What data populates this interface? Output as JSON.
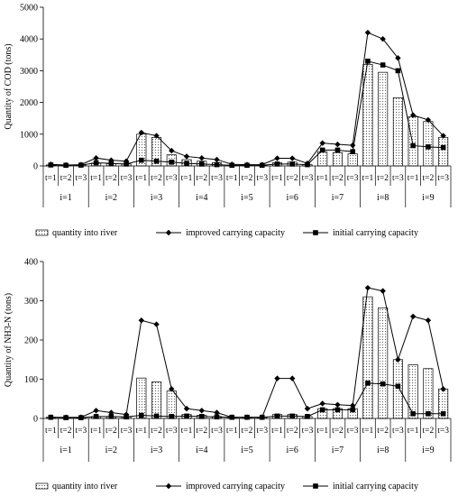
{
  "chart_data": [
    {
      "type": "bar",
      "ylabel": "Quantity of COD (tons)",
      "ylim": [
        0,
        5000
      ],
      "yticks": [
        0,
        1000,
        2000,
        3000,
        4000,
        5000
      ],
      "subcategories": [
        "t=1",
        "t=2",
        "t=3"
      ],
      "groups": [
        "i=1",
        "i=2",
        "i=3",
        "i=4",
        "i=5",
        "i=6",
        "i=7",
        "i=8",
        "i=9"
      ],
      "series": [
        {
          "name": "quantity into river",
          "kind": "bar",
          "values": [
            30,
            20,
            30,
            90,
            70,
            60,
            1000,
            900,
            350,
            200,
            150,
            100,
            20,
            20,
            20,
            100,
            120,
            40,
            450,
            420,
            380,
            3200,
            2950,
            2150,
            1550,
            1400,
            900
          ]
        },
        {
          "name": "improved carrying capacity",
          "kind": "line",
          "marker": "diamond",
          "values": [
            50,
            30,
            40,
            250,
            180,
            150,
            1050,
            950,
            480,
            300,
            250,
            200,
            50,
            40,
            40,
            240,
            240,
            80,
            720,
            680,
            650,
            4200,
            4000,
            3400,
            1600,
            1450,
            950
          ]
        },
        {
          "name": "initial carrying capacity",
          "kind": "line",
          "marker": "square",
          "values": [
            30,
            20,
            25,
            100,
            80,
            60,
            180,
            150,
            120,
            80,
            60,
            40,
            20,
            20,
            20,
            60,
            60,
            40,
            500,
            500,
            450,
            3300,
            3180,
            3000,
            640,
            600,
            580
          ]
        }
      ],
      "legend": [
        "quantity into river",
        "improved carrying capacity",
        "initial carrying capacity"
      ]
    },
    {
      "type": "bar",
      "ylabel": "Quantity of NH3-N (tons)",
      "ylim": [
        0,
        400
      ],
      "yticks": [
        0,
        100,
        200,
        300,
        400
      ],
      "subcategories": [
        "t=1",
        "t=2",
        "t=3"
      ],
      "groups": [
        "i=1",
        "i=2",
        "i=3",
        "i=4",
        "i=5",
        "i=6",
        "i=7",
        "i=8",
        "i=9"
      ],
      "series": [
        {
          "name": "quantity into river",
          "kind": "bar",
          "values": [
            3,
            2,
            2,
            5,
            5,
            4,
            103,
            93,
            70,
            10,
            8,
            5,
            3,
            3,
            3,
            10,
            10,
            5,
            25,
            25,
            25,
            310,
            282,
            150,
            137,
            127,
            75
          ]
        },
        {
          "name": "improved carrying capacity",
          "kind": "line",
          "marker": "diamond",
          "values": [
            3,
            3,
            3,
            20,
            15,
            10,
            250,
            240,
            75,
            25,
            20,
            15,
            3,
            3,
            3,
            102,
            102,
            25,
            38,
            35,
            33,
            333,
            325,
            150,
            260,
            250,
            75
          ]
        },
        {
          "name": "initial carrying capacity",
          "kind": "line",
          "marker": "square",
          "values": [
            3,
            2,
            2,
            5,
            5,
            4,
            8,
            6,
            5,
            6,
            5,
            4,
            3,
            3,
            3,
            6,
            6,
            5,
            22,
            22,
            22,
            90,
            88,
            82,
            12,
            12,
            12
          ]
        }
      ],
      "legend": [
        "quantity into river",
        "improved carrying capacity",
        "initial carrying capacity"
      ]
    }
  ]
}
